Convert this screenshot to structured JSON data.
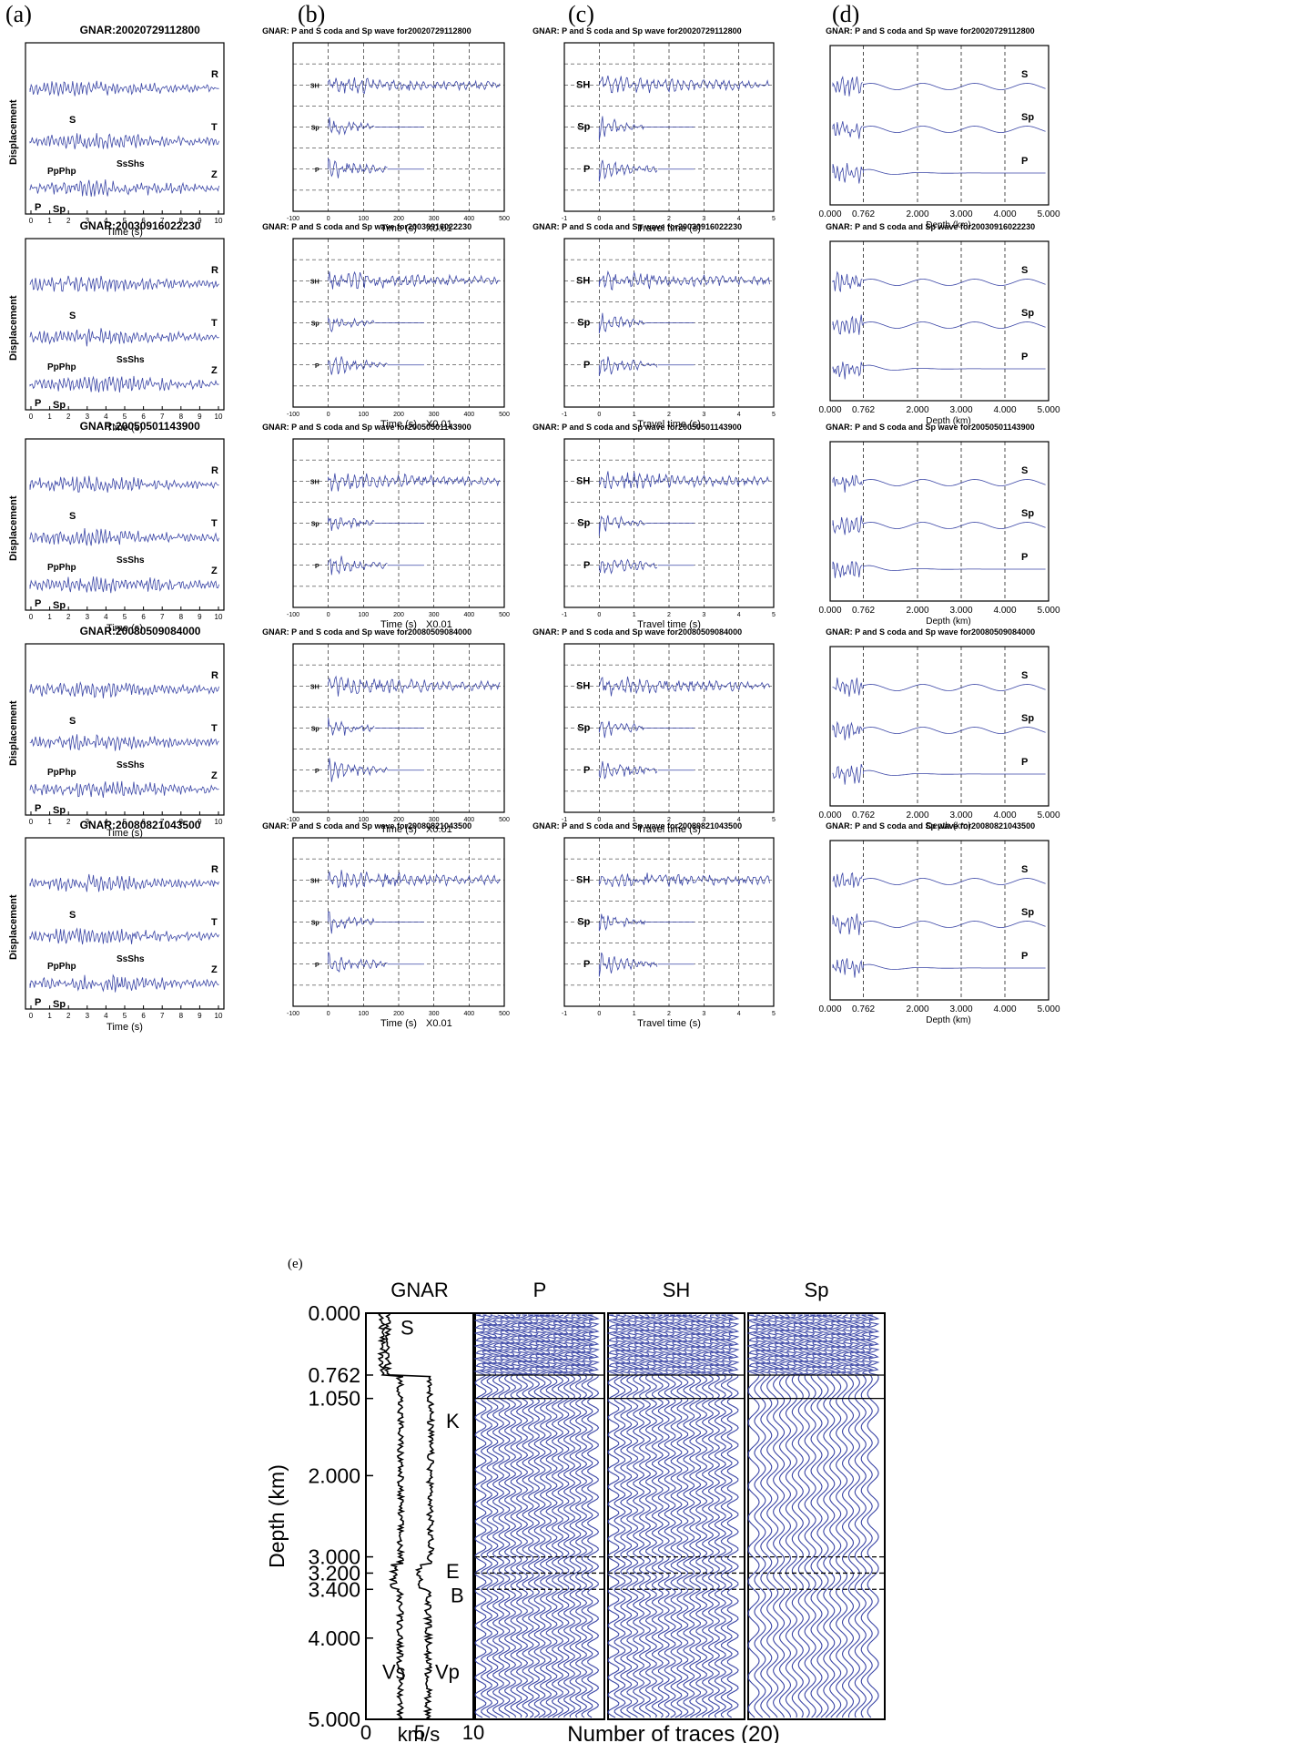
{
  "figure": {
    "panel_labels": [
      "(a)",
      "(b)",
      "(c)",
      "(d)",
      "(e)"
    ],
    "accent_color": "#3b46a6",
    "events": [
      {
        "id": "20020729112800"
      },
      {
        "id": "20030916022230"
      },
      {
        "id": "20050501143900"
      },
      {
        "id": "20080509084000"
      },
      {
        "id": "20080821043500"
      }
    ],
    "col_a": {
      "title_prefix": "GNAR: ",
      "ylabel": "Displacement",
      "xlabel": "Time (s)",
      "xticks": [
        "0",
        "1",
        "2",
        "3",
        "4",
        "5",
        "6",
        "7",
        "8",
        "9",
        "10"
      ],
      "trace_labels": [
        "R",
        "T",
        "Z"
      ],
      "phase_labels": {
        "s": "S",
        "sashs": "SsShs",
        "pphp": "PpPhp",
        "p": "P",
        "sp": "Sp"
      }
    },
    "col_b": {
      "title_prefix": "GNAR: P and S coda and Sp wave for ",
      "xlabel": "Time (s)",
      "xscale": "X0.01",
      "xticks": [
        "-100",
        "0",
        "100",
        "200",
        "300",
        "400",
        "500"
      ],
      "trace_labels": [
        "SH",
        "Sp",
        "P"
      ]
    },
    "col_c": {
      "title_prefix": "GNAR: P and S coda and Sp wave for ",
      "xlabel": "Travel time (s)",
      "xticks": [
        "-1",
        "0",
        "1",
        "2",
        "3",
        "4",
        "5"
      ],
      "trace_labels": [
        "SH",
        "Sp",
        "P"
      ]
    },
    "col_d": {
      "title_prefix": "GNAR: P and S coda and Sp wave for ",
      "xlabel": "Depth (km)",
      "xticks": [
        "0.000",
        "0.762",
        "2.000",
        "3.000",
        "4.000",
        "5.000"
      ],
      "trace_labels": [
        "S",
        "Sp",
        "P"
      ]
    },
    "panel_e": {
      "track_titles": [
        "GNAR",
        "P",
        "SH",
        "Sp"
      ],
      "ylabel": "Depth (km)",
      "yticks": [
        "0.000",
        "0.762",
        "1.050",
        "2.000",
        "3.000",
        "3.200",
        "3.400",
        "4.000",
        "5.000"
      ],
      "velocity_xticks": [
        "0",
        "5",
        "10"
      ],
      "velocity_xlabel": "km/s",
      "traces_xlabel": "Number of traces (20)",
      "layer_labels": [
        "S",
        "K",
        "E",
        "B"
      ],
      "curve_labels": [
        "Vs",
        "Vp"
      ]
    }
  }
}
